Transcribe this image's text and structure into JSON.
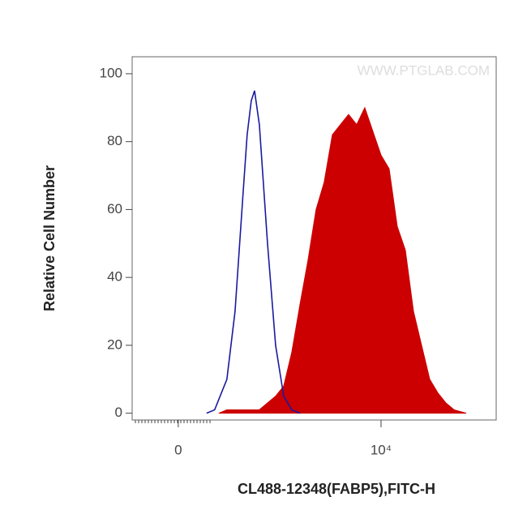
{
  "chart_data": {
    "type": "histogram-overlay",
    "xlabel": "CL488-12348(FABP5),FITC-H",
    "ylabel": "Relative Cell Number",
    "watermark": "WWW.PTGLAB.COM",
    "xscale": "asinh",
    "xscale_cofactor": 100,
    "xlim": [
      -152,
      202800
    ],
    "xticks": [
      0,
      {
        "value": 10000,
        "label": "10⁴"
      }
    ],
    "ylim": [
      -2,
      105
    ],
    "yticks": [
      0,
      20,
      40,
      60,
      80,
      100
    ],
    "series": [
      {
        "color": "#cc0000",
        "fill": true,
        "x": [
          127,
          164,
          263,
          410,
          632,
          783,
          969,
          1200,
          1480,
          1830,
          2260,
          2800,
          3460,
          4280,
          5290,
          6540,
          8090,
          10000,
          12360,
          15280,
          18890,
          23350,
          28860,
          35680,
          44100,
          54500,
          67400,
          92600
        ],
        "values": [
          0,
          1,
          1,
          1,
          5,
          8,
          18,
          32,
          45,
          60,
          68,
          82,
          85,
          88,
          85,
          90,
          83,
          76,
          72,
          55,
          48,
          30,
          20,
          10,
          6,
          3,
          1,
          0
        ]
      },
      {
        "color": "#1a1aa0",
        "fill": false,
        "x": [
          81,
          110,
          164,
          209,
          263,
          294,
          329,
          360,
          410,
          510,
          632,
          783,
          969,
          1200
        ],
        "values": [
          0,
          1,
          10,
          30,
          65,
          82,
          92,
          95,
          85,
          50,
          20,
          5,
          1,
          0
        ]
      }
    ]
  }
}
